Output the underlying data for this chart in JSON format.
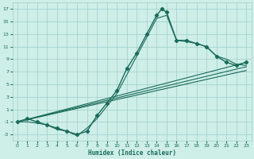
{
  "xlabel": "Humidex (Indice chaleur)",
  "bg_color": "#ceeee8",
  "grid_color": "#9fcfca",
  "line_color": "#1a6b5a",
  "xlim": [
    -0.5,
    23.5
  ],
  "ylim": [
    -4,
    18
  ],
  "xticks": [
    0,
    1,
    2,
    3,
    4,
    5,
    6,
    7,
    8,
    9,
    10,
    11,
    12,
    13,
    14,
    15,
    16,
    17,
    18,
    19,
    20,
    21,
    22,
    23
  ],
  "yticks": [
    -3,
    -1,
    1,
    3,
    5,
    7,
    9,
    11,
    13,
    15,
    17
  ],
  "main_curve_x": [
    0,
    1,
    2,
    3,
    4,
    5,
    6,
    7,
    8,
    9,
    10,
    11,
    12,
    13,
    14,
    14.5,
    15,
    16,
    17,
    18,
    19,
    20,
    21,
    22,
    23
  ],
  "main_curve_y": [
    -1,
    -0.5,
    -1,
    -1.5,
    -2,
    -2.5,
    -3,
    -2.5,
    0,
    2,
    4,
    7.5,
    10,
    13,
    16,
    17,
    16.5,
    12,
    12,
    11.5,
    11,
    9.5,
    8.5,
    8,
    8.5
  ],
  "line1_x": [
    0,
    23
  ],
  "line1_y": [
    -1,
    8.5
  ],
  "line2_x": [
    0,
    23
  ],
  "line2_y": [
    -1,
    7.8
  ],
  "line3_x": [
    0,
    23
  ],
  "line3_y": [
    -1,
    7.2
  ],
  "extra_curve_x": [
    0,
    1,
    2,
    3,
    4,
    5,
    6,
    7,
    8,
    9,
    10,
    11,
    12,
    13,
    14,
    15,
    16,
    17,
    18,
    19,
    20,
    21,
    22,
    23
  ],
  "extra_curve_y": [
    -1,
    -1,
    -1.2,
    -1.5,
    -2.2,
    -2.5,
    -3.2,
    -2.0,
    -0.5,
    1.5,
    3.5,
    6.5,
    9.5,
    12.5,
    15.5,
    16.0,
    12.0,
    11.8,
    11.5,
    11.0,
    9.5,
    9.0,
    8.2,
    8.0
  ]
}
